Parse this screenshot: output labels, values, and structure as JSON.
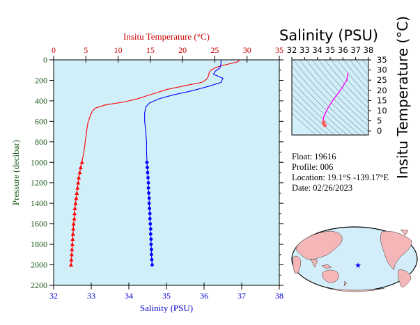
{
  "chart_data": [
    {
      "type": "line",
      "name_hint": "main-profile",
      "xlabel_top": "Insitu Temperature (°C)",
      "xlabel_bottom": "Salinity (PSU)",
      "ylabel": "Pressure (decibar)",
      "x_top_range": [
        0,
        35
      ],
      "x_top_ticks": [
        0,
        5,
        10,
        15,
        20,
        25,
        30,
        35
      ],
      "x_bottom_range": [
        32,
        38
      ],
      "x_bottom_ticks": [
        32,
        33,
        34,
        35,
        36,
        37,
        38
      ],
      "y_range": [
        0,
        2200
      ],
      "y_ticks": [
        0,
        200,
        400,
        600,
        800,
        1000,
        1200,
        1400,
        1600,
        1800,
        2000,
        2200
      ],
      "y_inverted": true,
      "grid": false,
      "colors": {
        "temperature": "#ff0000",
        "salinity": "#0000ff",
        "background": "#d0eff8"
      },
      "series": [
        {
          "axis": "top",
          "color": "#ff0000",
          "upper_profile": [
            [
              28.8,
              5
            ],
            [
              28.5,
              20
            ],
            [
              27.2,
              40
            ],
            [
              25.8,
              60
            ],
            [
              25.0,
              80
            ],
            [
              24.4,
              100
            ],
            [
              24.1,
              130
            ],
            [
              24.0,
              160
            ],
            [
              23.7,
              190
            ],
            [
              23.0,
              220
            ],
            [
              20.5,
              250
            ],
            [
              17.5,
              290
            ],
            [
              15.5,
              330
            ],
            [
              14.0,
              360
            ],
            [
              13.0,
              380
            ],
            [
              11.0,
              410
            ],
            [
              8.0,
              440
            ],
            [
              6.5,
              470
            ],
            [
              6.0,
              500
            ],
            [
              5.6,
              560
            ],
            [
              5.3,
              620
            ],
            [
              5.1,
              700
            ],
            [
              4.9,
              800
            ],
            [
              4.7,
              900
            ],
            [
              4.5,
              960
            ],
            [
              4.4,
              990
            ]
          ],
          "markers": [
            [
              4.4,
              1000
            ],
            [
              4.2,
              1050
            ],
            [
              4.05,
              1100
            ],
            [
              3.9,
              1150
            ],
            [
              3.8,
              1200
            ],
            [
              3.7,
              1250
            ],
            [
              3.6,
              1300
            ],
            [
              3.5,
              1350
            ],
            [
              3.4,
              1400
            ],
            [
              3.3,
              1450
            ],
            [
              3.25,
              1500
            ],
            [
              3.2,
              1550
            ],
            [
              3.1,
              1600
            ],
            [
              3.05,
              1650
            ],
            [
              3.0,
              1700
            ],
            [
              2.95,
              1750
            ],
            [
              2.9,
              1800
            ],
            [
              2.85,
              1850
            ],
            [
              2.8,
              1900
            ],
            [
              2.75,
              1950
            ],
            [
              2.7,
              2000
            ]
          ]
        },
        {
          "axis": "bottom",
          "color": "#0000ff",
          "upper_profile": [
            [
              36.45,
              5
            ],
            [
              36.45,
              40
            ],
            [
              36.42,
              80
            ],
            [
              36.3,
              110
            ],
            [
              36.25,
              140
            ],
            [
              36.5,
              180
            ],
            [
              36.45,
              220
            ],
            [
              36.1,
              260
            ],
            [
              35.7,
              300
            ],
            [
              35.2,
              340
            ],
            [
              34.8,
              380
            ],
            [
              34.55,
              420
            ],
            [
              34.45,
              460
            ],
            [
              34.42,
              520
            ],
            [
              34.42,
              600
            ],
            [
              34.45,
              700
            ],
            [
              34.47,
              800
            ],
            [
              34.47,
              900
            ],
            [
              34.48,
              980
            ]
          ],
          "markers": [
            [
              34.48,
              1000
            ],
            [
              34.49,
              1050
            ],
            [
              34.5,
              1100
            ],
            [
              34.51,
              1150
            ],
            [
              34.52,
              1200
            ],
            [
              34.52,
              1250
            ],
            [
              34.53,
              1300
            ],
            [
              34.54,
              1350
            ],
            [
              34.54,
              1400
            ],
            [
              34.55,
              1450
            ],
            [
              34.56,
              1500
            ],
            [
              34.56,
              1550
            ],
            [
              34.57,
              1600
            ],
            [
              34.58,
              1650
            ],
            [
              34.58,
              1700
            ],
            [
              34.59,
              1750
            ],
            [
              34.59,
              1800
            ],
            [
              34.6,
              1850
            ],
            [
              34.6,
              1900
            ],
            [
              34.61,
              1950
            ],
            [
              34.62,
              2000
            ]
          ]
        }
      ]
    },
    {
      "type": "line",
      "name_hint": "ts-diagram",
      "title": "Salinity (PSU)",
      "ylabel": "Insitu Temperature (°C)",
      "x_range": [
        32,
        38
      ],
      "x_ticks": [
        32,
        33,
        34,
        35,
        36,
        37,
        38
      ],
      "y_range": [
        -2,
        35
      ],
      "y_ticks": [
        0,
        5,
        10,
        15,
        20,
        25,
        30,
        35
      ],
      "series": [
        {
          "color": "#ff00ff",
          "points": [
            [
              36.4,
              28.5
            ],
            [
              36.3,
              25
            ],
            [
              36.2,
              24
            ],
            [
              35.8,
              20
            ],
            [
              35.2,
              15
            ],
            [
              34.8,
              11
            ],
            [
              34.5,
              7
            ],
            [
              34.45,
              5
            ],
            [
              34.48,
              4
            ],
            [
              34.5,
              3.5
            ]
          ]
        },
        {
          "color": "#ff6060",
          "points": [
            [
              34.48,
              4.4
            ],
            [
              34.5,
              3.5
            ],
            [
              34.55,
              3.0
            ],
            [
              34.6,
              2.7
            ]
          ]
        }
      ]
    }
  ],
  "info": {
    "float": "Float:  19616",
    "profile": "Profile:  006",
    "location": "Location:  19.1°S  -139.17°E",
    "date": "Date:  02/26/2023"
  }
}
